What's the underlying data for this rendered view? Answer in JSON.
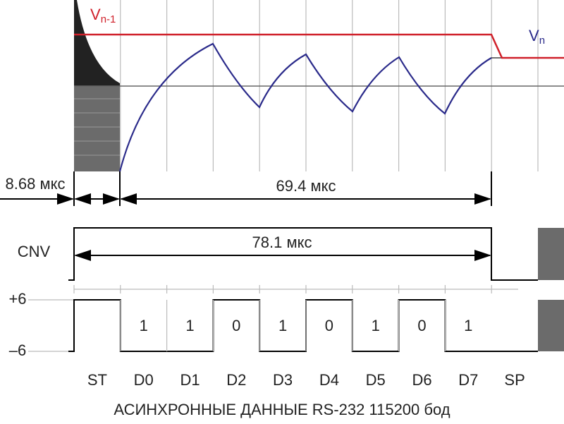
{
  "labels": {
    "v_prev": "V",
    "v_prev_sub": "n-1",
    "v_next": "V",
    "v_next_sub": "n",
    "t_start": "8.68 мкс",
    "t_conv": "69.4 мкс",
    "cnv": "CNV",
    "t_cnv": "78.1 мкс",
    "level_high": "+6",
    "level_low": "–6",
    "caption": "АСИНХРОННЫЕ ДАННЫЕ RS-232 115200 бод"
  },
  "bits": [
    1,
    1,
    0,
    1,
    0,
    1,
    0,
    1
  ],
  "slots": [
    "ST",
    "D0",
    "D1",
    "D2",
    "D3",
    "D4",
    "D5",
    "D6",
    "D7",
    "SP"
  ]
}
